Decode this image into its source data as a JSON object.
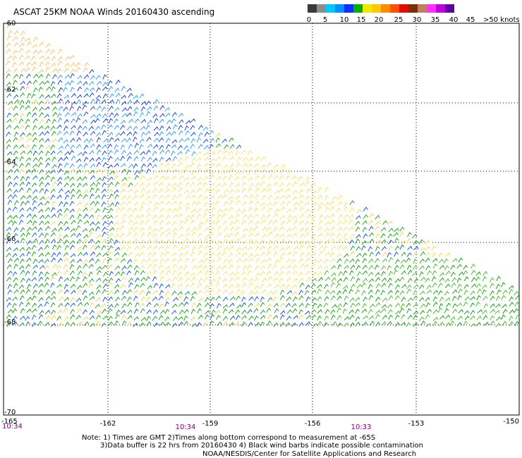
{
  "title": "ASCAT 25KM NOAA Winds 20160430 ascending",
  "legend": {
    "units": ">50 knots",
    "labels": [
      "0",
      "5",
      "10",
      "15",
      "20",
      "25",
      "30",
      "35",
      "40",
      "45"
    ],
    "colors": [
      "#3a3a3a",
      "#8c8c8c",
      "#00c8ff",
      "#0090ff",
      "#1030ff",
      "#00b000",
      "#f0e800",
      "#ffc800",
      "#ff8c00",
      "#ff5000",
      "#e01000",
      "#7a3000",
      "#c08060",
      "#ff30ff",
      "#c000e0",
      "#6000a0"
    ]
  },
  "lat_labels": [
    "-60",
    "-62",
    "-64",
    "-66",
    "-68",
    "-70"
  ],
  "lon_labels": [
    "-165",
    "-162",
    "-159",
    "-156",
    "-153",
    "-150"
  ],
  "time_labels": [
    "10:34",
    "10:34",
    "10:33"
  ],
  "notes": {
    "line1": "Note: 1) Times are GMT 2)Times along bottom correspond to measurement at -65S",
    "line2": "3)Data buffer is 22 hrs from 20160430 4) Black wind barbs indicate possible contamination",
    "line3": "NOAA/NESDIS/Center for Satellite Applications and Research"
  }
}
